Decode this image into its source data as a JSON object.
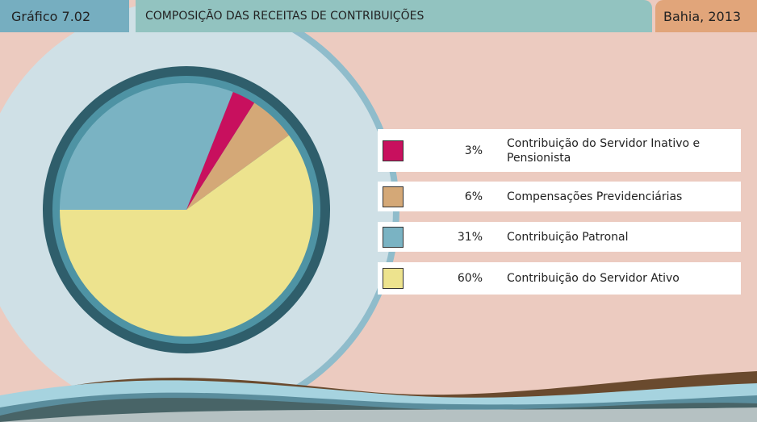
{
  "header": {
    "label": "Gráfico 7.02",
    "title": "COMPOSIÇÃO DAS RECEITAS DE CONTRIBUIÇÕES",
    "place": "Bahia, 2013"
  },
  "chart_data": {
    "type": "pie",
    "categories": [
      "Contribuição do Servidor Inativo e Pensionista",
      "Compensações Previdenciárias",
      "Contribuição Patronal",
      "Contribuição do Servidor Ativo"
    ],
    "values": [
      3,
      6,
      31,
      60
    ],
    "value_labels": [
      "3%",
      "6%",
      "31%",
      "60%"
    ],
    "colors": [
      "#c8105e",
      "#d4a877",
      "#7ab3c3",
      "#ede38e"
    ]
  }
}
